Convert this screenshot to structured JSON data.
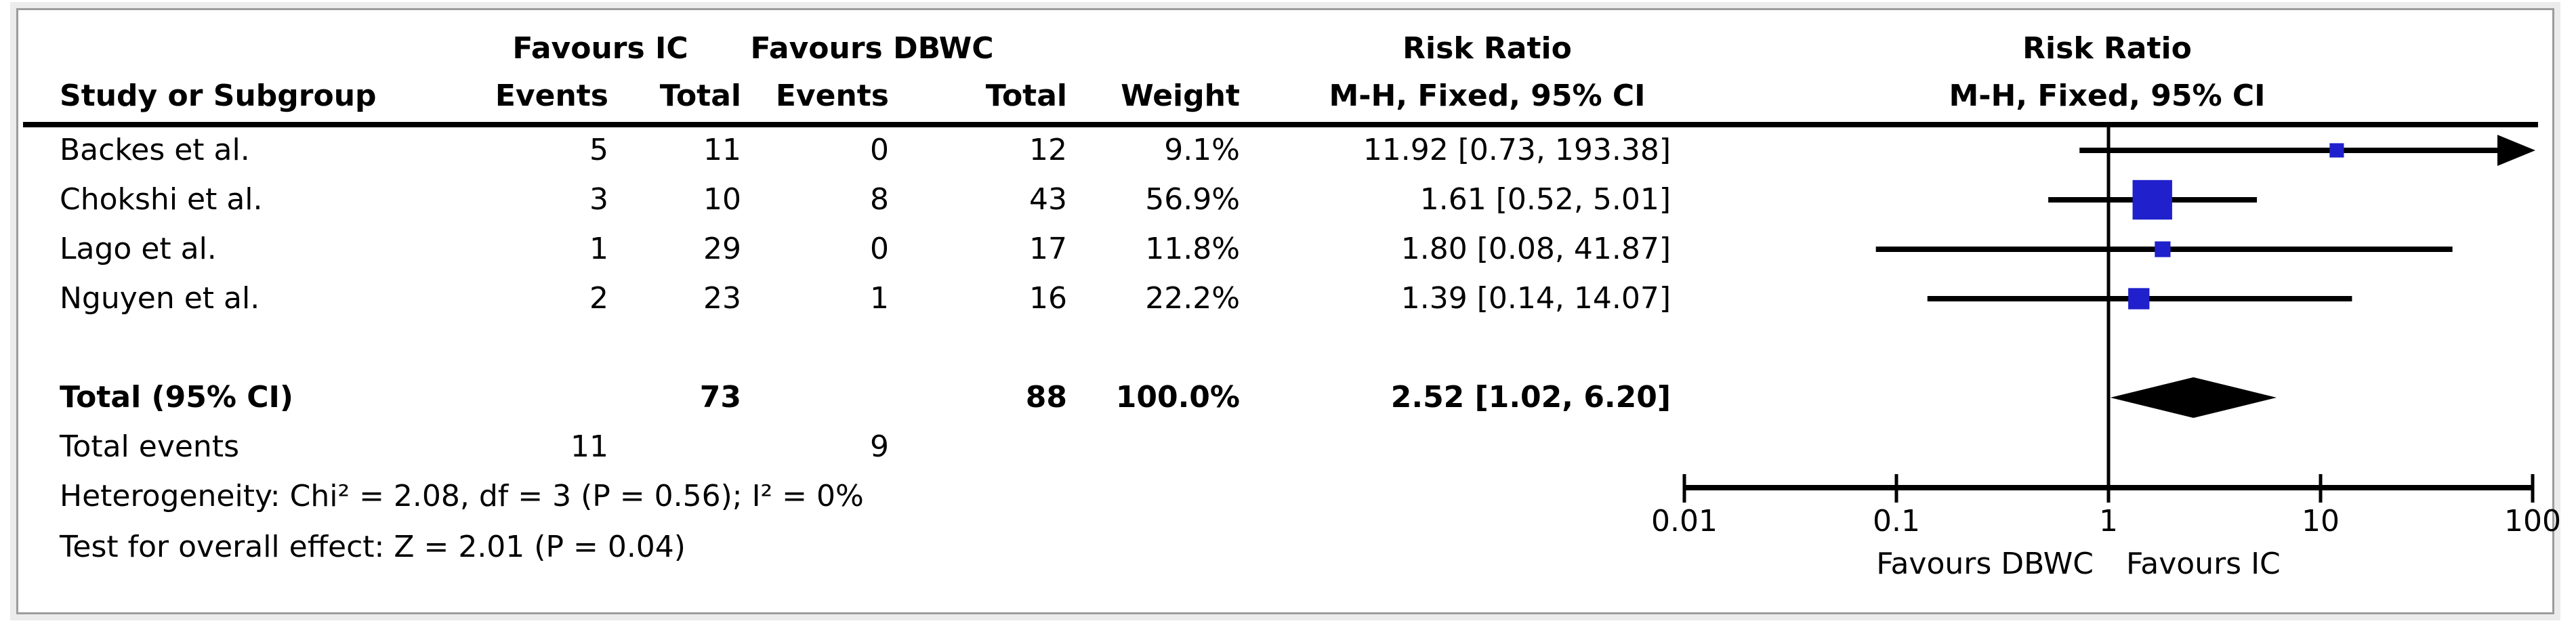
{
  "figure": {
    "header": {
      "study_col": "Study or Subgroup",
      "group_ic": "Favours IC",
      "group_dbwc": "Favours DBWC",
      "events_col": "Events",
      "total_col": "Total",
      "weight_col": "Weight",
      "risk_ratio": "Risk Ratio",
      "method": "M-H, Fixed, 95% CI"
    },
    "rows": [
      {
        "study": "Backes et al.",
        "ic_events": "5",
        "ic_total": "11",
        "dbwc_events": "0",
        "dbwc_total": "12",
        "weight": "9.1%",
        "rr_ci": "11.92 [0.73, 193.38]"
      },
      {
        "study": "Chokshi et al.",
        "ic_events": "3",
        "ic_total": "10",
        "dbwc_events": "8",
        "dbwc_total": "43",
        "weight": "56.9%",
        "rr_ci": "1.61 [0.52, 5.01]"
      },
      {
        "study": "Lago et al.",
        "ic_events": "1",
        "ic_total": "29",
        "dbwc_events": "0",
        "dbwc_total": "17",
        "weight": "11.8%",
        "rr_ci": "1.80 [0.08, 41.87]"
      },
      {
        "study": "Nguyen et al.",
        "ic_events": "2",
        "ic_total": "23",
        "dbwc_events": "1",
        "dbwc_total": "16",
        "weight": "22.2%",
        "rr_ci": "1.39 [0.14, 14.07]"
      }
    ],
    "total_row": {
      "label": "Total (95% CI)",
      "ic_total": "73",
      "dbwc_total": "88",
      "weight": "100.0%",
      "rr_ci": "2.52 [1.02, 6.20]"
    },
    "total_events_row": {
      "label": "Total events",
      "ic_events": "11",
      "dbwc_events": "9"
    },
    "heterogeneity_line": "Heterogeneity: Chi² = 2.08, df = 3 (P = 0.56); I² = 0%",
    "overall_effect_line": "Test for overall effect: Z = 2.01 (P = 0.04)"
  },
  "chart_data": {
    "type": "forest",
    "title": "Risk Ratio",
    "effect_measure": "M-H, Fixed, 95% CI",
    "x_scale": "log",
    "x_range": [
      0.01,
      100
    ],
    "x_ticks": [
      0.01,
      0.1,
      1,
      10,
      100
    ],
    "x_tick_labels": [
      "0.01",
      "0.1",
      "1",
      "10",
      "100"
    ],
    "axis_label_left": "Favours DBWC",
    "axis_label_right": "Favours IC",
    "marker_color": "#2020CC",
    "diamond_color": "#000000",
    "studies": [
      {
        "name": "Backes et al.",
        "ic_events": 5,
        "ic_total": 11,
        "dbwc_events": 0,
        "dbwc_total": 12,
        "weight_pct": 9.1,
        "rr": 11.92,
        "ci_low": 0.73,
        "ci_high": 193.38
      },
      {
        "name": "Chokshi et al.",
        "ic_events": 3,
        "ic_total": 10,
        "dbwc_events": 8,
        "dbwc_total": 43,
        "weight_pct": 56.9,
        "rr": 1.61,
        "ci_low": 0.52,
        "ci_high": 5.01
      },
      {
        "name": "Lago et al.",
        "ic_events": 1,
        "ic_total": 29,
        "dbwc_events": 0,
        "dbwc_total": 17,
        "weight_pct": 11.8,
        "rr": 1.8,
        "ci_low": 0.08,
        "ci_high": 41.87
      },
      {
        "name": "Nguyen et al.",
        "ic_events": 2,
        "ic_total": 23,
        "dbwc_events": 1,
        "dbwc_total": 16,
        "weight_pct": 22.2,
        "rr": 1.39,
        "ci_low": 0.14,
        "ci_high": 14.07
      }
    ],
    "total": {
      "label": "Total (95% CI)",
      "rr": 2.52,
      "ci_low": 1.02,
      "ci_high": 6.2,
      "ic_total": 73,
      "dbwc_total": 88,
      "weight_pct": 100.0,
      "ic_events": 11,
      "dbwc_events": 9
    },
    "heterogeneity": {
      "chi2": 2.08,
      "df": 3,
      "p": 0.56,
      "i2_pct": 0
    },
    "overall_effect": {
      "z": 2.01,
      "p": 0.04
    }
  }
}
